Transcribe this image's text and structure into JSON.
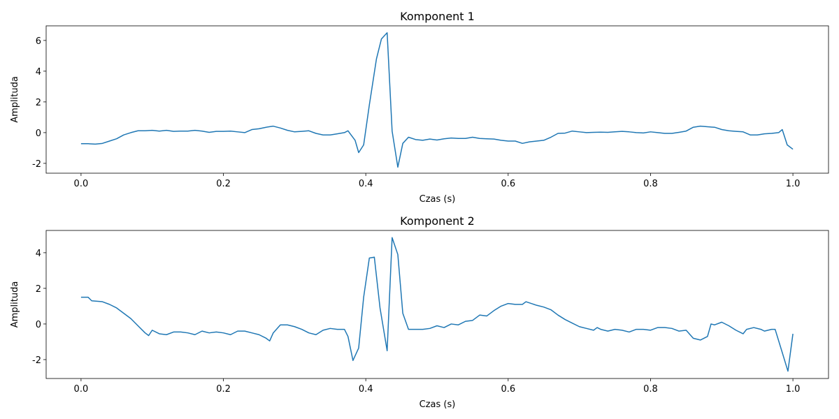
{
  "chart_data": [
    {
      "type": "line",
      "title": "Komponent 1",
      "xlabel": "Czas (s)",
      "ylabel": "Amplituda",
      "color": "#1f77b4",
      "x": [
        0,
        0.01,
        0.02,
        0.03,
        0.04,
        0.05,
        0.06,
        0.07,
        0.08,
        0.09,
        0.1,
        0.11,
        0.12,
        0.13,
        0.14,
        0.15,
        0.16,
        0.17,
        0.18,
        0.19,
        0.2,
        0.21,
        0.22,
        0.23,
        0.24,
        0.25,
        0.26,
        0.27,
        0.28,
        0.29,
        0.3,
        0.31,
        0.32,
        0.33,
        0.34,
        0.35,
        0.36,
        0.37,
        0.375,
        0.385,
        0.39,
        0.397,
        0.405,
        0.415,
        0.422,
        0.43,
        0.437,
        0.445,
        0.452,
        0.46,
        0.47,
        0.48,
        0.49,
        0.5,
        0.51,
        0.52,
        0.53,
        0.54,
        0.55,
        0.56,
        0.57,
        0.58,
        0.59,
        0.6,
        0.61,
        0.62,
        0.63,
        0.64,
        0.65,
        0.66,
        0.67,
        0.68,
        0.69,
        0.7,
        0.71,
        0.72,
        0.73,
        0.74,
        0.75,
        0.76,
        0.77,
        0.78,
        0.79,
        0.8,
        0.81,
        0.82,
        0.83,
        0.84,
        0.85,
        0.86,
        0.87,
        0.88,
        0.89,
        0.9,
        0.91,
        0.92,
        0.93,
        0.94,
        0.95,
        0.96,
        0.97,
        0.98,
        0.985,
        0.992,
        1.0
      ],
      "values": [
        -0.72,
        -0.72,
        -0.75,
        -0.7,
        -0.55,
        -0.4,
        -0.15,
        0.0,
        0.12,
        0.12,
        0.15,
        0.1,
        0.15,
        0.08,
        0.1,
        0.1,
        0.15,
        0.1,
        0.02,
        0.08,
        0.08,
        0.1,
        0.05,
        0.0,
        0.2,
        0.25,
        0.35,
        0.42,
        0.3,
        0.15,
        0.05,
        0.08,
        0.12,
        -0.05,
        -0.15,
        -0.15,
        -0.08,
        0.0,
        0.12,
        -0.5,
        -1.3,
        -0.8,
        1.8,
        4.8,
        6.1,
        6.5,
        0.1,
        -2.25,
        -0.7,
        -0.3,
        -0.45,
        -0.5,
        -0.42,
        -0.48,
        -0.4,
        -0.35,
        -0.38,
        -0.38,
        -0.3,
        -0.38,
        -0.4,
        -0.42,
        -0.5,
        -0.55,
        -0.55,
        -0.7,
        -0.6,
        -0.55,
        -0.5,
        -0.3,
        -0.05,
        -0.03,
        0.1,
        0.05,
        0.0,
        0.02,
        0.03,
        0.02,
        0.05,
        0.08,
        0.05,
        0.0,
        -0.02,
        0.05,
        0.0,
        -0.05,
        -0.05,
        0.02,
        0.1,
        0.35,
        0.42,
        0.38,
        0.35,
        0.2,
        0.12,
        0.08,
        0.05,
        -0.15,
        -0.15,
        -0.08,
        -0.05,
        0.0,
        0.2,
        -0.8,
        -1.08
      ],
      "xlim": [
        -0.049,
        1.05
      ],
      "ylim": [
        -2.64,
        6.95
      ],
      "xticks": [
        {
          "value": 0,
          "label": "0.0"
        },
        0.2,
        0.4,
        0.6,
        0.8,
        {
          "value": 1,
          "label": "1.0"
        }
      ],
      "yticks": [
        -2,
        0,
        2,
        4,
        6
      ]
    },
    {
      "type": "line",
      "title": "Komponent 2",
      "xlabel": "Czas (s)",
      "ylabel": "Amplituda",
      "color": "#1f77b4",
      "x": [
        0,
        0.01,
        0.015,
        0.03,
        0.04,
        0.05,
        0.06,
        0.07,
        0.08,
        0.09,
        0.095,
        0.1,
        0.11,
        0.12,
        0.13,
        0.14,
        0.15,
        0.16,
        0.17,
        0.18,
        0.19,
        0.2,
        0.21,
        0.22,
        0.23,
        0.24,
        0.25,
        0.26,
        0.265,
        0.27,
        0.28,
        0.29,
        0.3,
        0.31,
        0.32,
        0.33,
        0.34,
        0.35,
        0.36,
        0.37,
        0.375,
        0.382,
        0.39,
        0.397,
        0.405,
        0.412,
        0.42,
        0.43,
        0.437,
        0.445,
        0.452,
        0.46,
        0.47,
        0.48,
        0.49,
        0.5,
        0.51,
        0.52,
        0.53,
        0.54,
        0.55,
        0.56,
        0.57,
        0.58,
        0.59,
        0.6,
        0.61,
        0.62,
        0.625,
        0.64,
        0.65,
        0.66,
        0.67,
        0.68,
        0.69,
        0.7,
        0.71,
        0.72,
        0.725,
        0.73,
        0.74,
        0.75,
        0.76,
        0.77,
        0.78,
        0.79,
        0.8,
        0.81,
        0.82,
        0.83,
        0.84,
        0.85,
        0.86,
        0.87,
        0.88,
        0.885,
        0.89,
        0.9,
        0.91,
        0.92,
        0.93,
        0.935,
        0.945,
        0.955,
        0.96,
        0.97,
        0.975,
        0.985,
        0.993,
        1.0
      ],
      "values": [
        1.5,
        1.5,
        1.3,
        1.25,
        1.1,
        0.9,
        0.6,
        0.3,
        -0.1,
        -0.5,
        -0.65,
        -0.35,
        -0.55,
        -0.6,
        -0.45,
        -0.45,
        -0.5,
        -0.6,
        -0.4,
        -0.5,
        -0.45,
        -0.5,
        -0.6,
        -0.4,
        -0.4,
        -0.5,
        -0.6,
        -0.8,
        -0.95,
        -0.5,
        -0.05,
        -0.05,
        -0.15,
        -0.3,
        -0.5,
        -0.6,
        -0.35,
        -0.25,
        -0.3,
        -0.3,
        -0.7,
        -2.05,
        -1.35,
        1.5,
        3.7,
        3.75,
        0.9,
        -1.5,
        4.85,
        3.9,
        0.6,
        -0.3,
        -0.3,
        -0.3,
        -0.25,
        -0.1,
        -0.2,
        0.0,
        -0.05,
        0.15,
        0.2,
        0.5,
        0.45,
        0.75,
        1.0,
        1.15,
        1.1,
        1.1,
        1.25,
        1.05,
        0.95,
        0.8,
        0.5,
        0.25,
        0.05,
        -0.15,
        -0.25,
        -0.35,
        -0.2,
        -0.3,
        -0.4,
        -0.3,
        -0.35,
        -0.45,
        -0.3,
        -0.3,
        -0.35,
        -0.2,
        -0.2,
        -0.25,
        -0.4,
        -0.35,
        -0.8,
        -0.9,
        -0.7,
        0.0,
        -0.05,
        0.1,
        -0.1,
        -0.35,
        -0.55,
        -0.3,
        -0.2,
        -0.3,
        -0.4,
        -0.3,
        -0.3,
        -1.6,
        -2.65,
        -0.55
      ],
      "xlim": [
        -0.049,
        1.05
      ],
      "ylim": [
        -3.06,
        5.25
      ],
      "xticks": [
        {
          "value": 0,
          "label": "0.0"
        },
        0.2,
        0.4,
        0.6,
        0.8,
        {
          "value": 1,
          "label": "1.0"
        }
      ],
      "yticks": [
        -2,
        0,
        2,
        4
      ]
    }
  ]
}
